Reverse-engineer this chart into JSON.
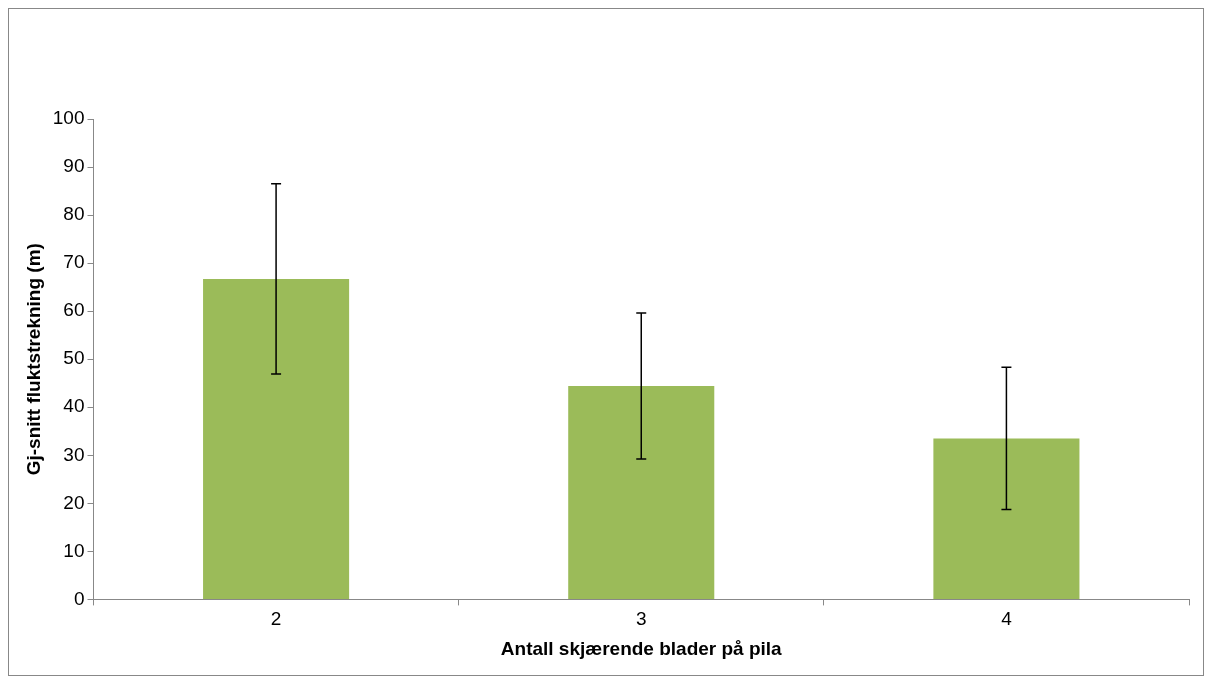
{
  "chart_data": {
    "type": "bar",
    "xlabel": "Antall skjærende blader på pila",
    "ylabel": "Gj-snitt fluktstrekning (m)",
    "categories": [
      "2",
      "3",
      "4"
    ],
    "values": [
      66.7,
      44.4,
      33.5
    ],
    "errors": [
      19.8,
      15.2,
      14.8
    ],
    "color": "#9bbb59",
    "ylim": [
      0,
      100
    ],
    "yticks": [
      0,
      10,
      20,
      30,
      40,
      50,
      60,
      70,
      80,
      90,
      100
    ],
    "grid": false,
    "legend": false
  }
}
